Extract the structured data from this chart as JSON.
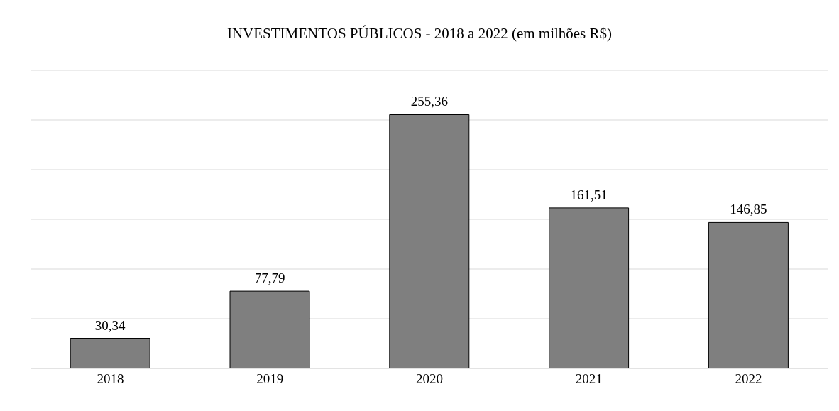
{
  "chart_data": {
    "type": "bar",
    "title": "INVESTIMENTOS PÚBLICOS - 2018 a 2022 (em milhões R$)",
    "categories": [
      "2018",
      "2019",
      "2020",
      "2021",
      "2022"
    ],
    "values": [
      30.34,
      77.79,
      255.36,
      161.51,
      146.85
    ],
    "value_labels": [
      "30,34",
      "77,79",
      "255,36",
      "161,51",
      "146,85"
    ],
    "color": "#7f7f7f",
    "ylim": [
      0,
      300
    ],
    "yticks": [
      {
        "value": 0,
        "label": null
      },
      {
        "value": 50,
        "label": null
      },
      {
        "value": 100,
        "label": null
      },
      {
        "value": 150,
        "label": null
      },
      {
        "value": 200,
        "label": null
      },
      {
        "value": 250,
        "label": null
      },
      {
        "value": 300,
        "label": null
      }
    ],
    "tick_labels": "x",
    "grid": "y"
  }
}
